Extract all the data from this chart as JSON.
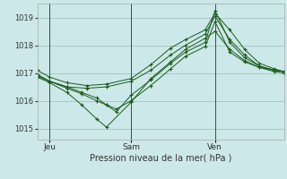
{
  "bg_color": "#cce8e8",
  "grid_color": "#99bbbb",
  "line_color": "#1a5c1a",
  "marker_color": "#1a5c1a",
  "title": "Pression niveau de la mer( hPa )",
  "ylim": [
    1014.6,
    1019.5
  ],
  "yticks": [
    1015,
    1016,
    1017,
    1018,
    1019
  ],
  "xlim": [
    0,
    100
  ],
  "xlabel_ticks": [
    5,
    38,
    72
  ],
  "xlabel_labels": [
    "Jeu",
    "Sam",
    "Ven"
  ],
  "vlines": [
    5,
    38,
    72
  ],
  "series": [
    [
      [
        0,
        1017.1
      ],
      [
        5,
        1016.85
      ],
      [
        12,
        1016.65
      ],
      [
        20,
        1016.55
      ],
      [
        28,
        1016.6
      ],
      [
        38,
        1016.8
      ],
      [
        46,
        1017.3
      ],
      [
        54,
        1017.9
      ],
      [
        60,
        1018.2
      ],
      [
        68,
        1018.55
      ],
      [
        72,
        1019.15
      ],
      [
        78,
        1018.55
      ],
      [
        84,
        1017.85
      ],
      [
        90,
        1017.35
      ],
      [
        96,
        1017.15
      ],
      [
        100,
        1017.05
      ]
    ],
    [
      [
        0,
        1016.95
      ],
      [
        5,
        1016.7
      ],
      [
        12,
        1016.5
      ],
      [
        20,
        1016.45
      ],
      [
        28,
        1016.5
      ],
      [
        38,
        1016.7
      ],
      [
        46,
        1017.1
      ],
      [
        54,
        1017.65
      ],
      [
        60,
        1018.0
      ],
      [
        68,
        1018.4
      ],
      [
        72,
        1019.05
      ],
      [
        78,
        1018.2
      ],
      [
        84,
        1017.65
      ],
      [
        90,
        1017.25
      ],
      [
        96,
        1017.1
      ],
      [
        100,
        1017.05
      ]
    ],
    [
      [
        0,
        1016.85
      ],
      [
        5,
        1016.65
      ],
      [
        12,
        1016.3
      ],
      [
        18,
        1015.85
      ],
      [
        24,
        1015.35
      ],
      [
        28,
        1015.05
      ],
      [
        38,
        1015.95
      ],
      [
        46,
        1016.8
      ],
      [
        54,
        1017.4
      ],
      [
        60,
        1017.85
      ],
      [
        68,
        1018.25
      ],
      [
        72,
        1018.5
      ],
      [
        78,
        1017.85
      ],
      [
        84,
        1017.45
      ],
      [
        90,
        1017.2
      ],
      [
        96,
        1017.05
      ],
      [
        100,
        1017.0
      ]
    ],
    [
      [
        0,
        1016.9
      ],
      [
        5,
        1016.7
      ],
      [
        12,
        1016.45
      ],
      [
        18,
        1016.25
      ],
      [
        24,
        1016.0
      ],
      [
        28,
        1015.85
      ],
      [
        32,
        1015.7
      ],
      [
        38,
        1016.0
      ],
      [
        46,
        1016.55
      ],
      [
        54,
        1017.15
      ],
      [
        60,
        1017.6
      ],
      [
        68,
        1017.95
      ],
      [
        72,
        1018.85
      ],
      [
        78,
        1017.75
      ],
      [
        84,
        1017.4
      ],
      [
        90,
        1017.2
      ],
      [
        96,
        1017.1
      ],
      [
        100,
        1017.05
      ]
    ],
    [
      [
        0,
        1016.9
      ],
      [
        5,
        1016.7
      ],
      [
        12,
        1016.5
      ],
      [
        18,
        1016.3
      ],
      [
        24,
        1016.1
      ],
      [
        28,
        1015.85
      ],
      [
        32,
        1015.6
      ],
      [
        38,
        1016.2
      ],
      [
        46,
        1016.75
      ],
      [
        54,
        1017.35
      ],
      [
        60,
        1017.75
      ],
      [
        68,
        1018.1
      ],
      [
        72,
        1019.25
      ],
      [
        78,
        1018.1
      ],
      [
        84,
        1017.55
      ],
      [
        90,
        1017.25
      ],
      [
        96,
        1017.1
      ],
      [
        100,
        1017.05
      ]
    ]
  ],
  "figsize": [
    3.2,
    2.0
  ],
  "dpi": 100
}
